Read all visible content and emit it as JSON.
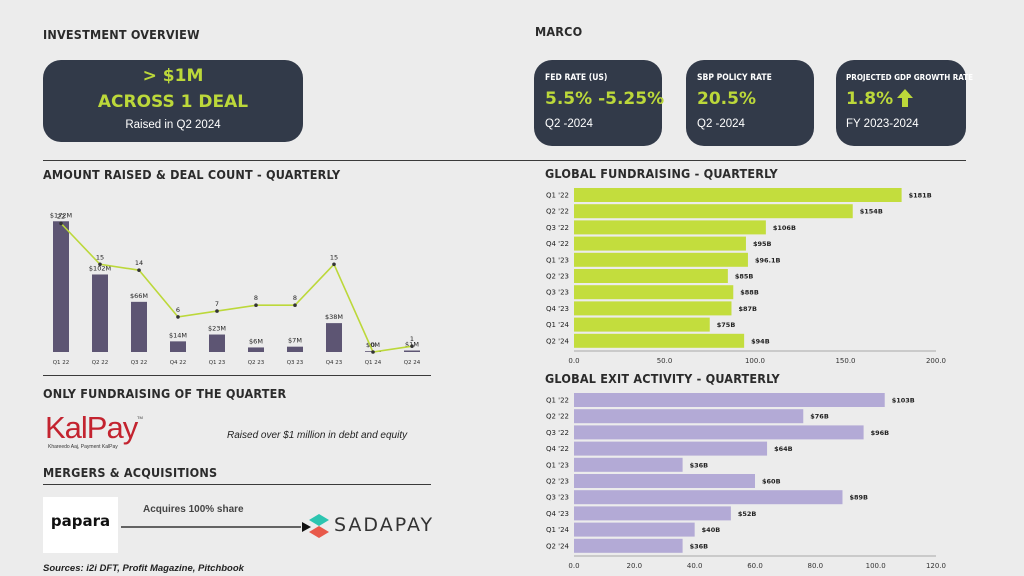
{
  "investment_overview": {
    "heading": "INVESTMENT OVERVIEW",
    "amount": "> $1M",
    "deal_line": "ACROSS 1 DEAL",
    "raised_note": "Raised in Q2 2024"
  },
  "macro": {
    "heading": "MARCO",
    "cards": [
      {
        "title": "FED RATE (US)",
        "value": "5.5% -5.25%",
        "period": "Q2 -2024"
      },
      {
        "title": "SBP POLICY RATE",
        "value": "20.5%",
        "period": "Q2 -2024"
      },
      {
        "title": "PROJECTED GDP GROWTH RATE",
        "value": "1.8%",
        "period": "FY 2023-2024",
        "icon": "arrow-up-icon"
      }
    ]
  },
  "only_fundraising": {
    "heading": "ONLY FUNDRAISING OF THE QUARTER",
    "company": "KalPay",
    "tagline": "Khareedo Aaj, Payment KalPay",
    "tm": "TM",
    "note": "Raised over $1 million in debt and equity"
  },
  "mna": {
    "heading": "MERGERS & ACQUISITIONS",
    "acquirer": "papara",
    "action": "Acquires 100% share",
    "target": "SADAPAY"
  },
  "sources": "Sources: i2i DFT, Profit Magazine, Pitchbook",
  "colors": {
    "card": "#323a49",
    "accent": "#bcd83a",
    "bar_purple": "#5d5573",
    "exit_purple": "#b3aad6",
    "lime_bar": "#c3dd3d"
  },
  "chart_data": [
    {
      "type": "bar",
      "title": "AMOUNT RAISED & DEAL COUNT - QUARTERLY",
      "categories": [
        "Q1 22",
        "Q2 22",
        "Q3 22",
        "Q4 22",
        "Q1 23",
        "Q2 23",
        "Q3 23",
        "Q4 23",
        "Q1 24",
        "Q2 24"
      ],
      "series": [
        {
          "name": "Amount Raised ($M)",
          "kind": "bar",
          "values": [
            172,
            102,
            66,
            14,
            23,
            6,
            7,
            38,
            0,
            1
          ],
          "labels": [
            "$172M",
            "$102M",
            "$66M",
            "$14M",
            "$23M",
            "$6M",
            "$7M",
            "$38M",
            "$0M",
            "$1M"
          ]
        },
        {
          "name": "Deal Count",
          "kind": "line",
          "values": [
            22,
            15,
            14,
            6,
            7,
            8,
            8,
            15,
            0,
            1
          ]
        }
      ],
      "ylim_amount": [
        0,
        200
      ],
      "ylim_count": [
        0,
        26
      ]
    },
    {
      "type": "bar",
      "orientation": "horizontal",
      "title": "GLOBAL FUNDRAISING -  QUARTERLY",
      "categories": [
        "Q1 '22",
        "Q2 '22",
        "Q3 '22",
        "Q4 '22",
        "Q1 '23",
        "Q2 '23",
        "Q3 '23",
        "Q4 '23",
        "Q1 '24",
        "Q2 '24"
      ],
      "values": [
        181,
        154,
        106,
        95,
        96.1,
        85,
        88,
        87,
        75,
        94
      ],
      "labels": [
        "$181B",
        "$154B",
        "$106B",
        "$95B",
        "$96.1B",
        "$85B",
        "$88B",
        "$87B",
        "$75B",
        "$94B"
      ],
      "xlim": [
        0,
        200
      ],
      "xticks": [
        "0.0",
        "50.0",
        "100.0",
        "150.0",
        "200.0"
      ],
      "xtick_values": [
        0,
        50,
        100,
        150,
        200
      ]
    },
    {
      "type": "bar",
      "orientation": "horizontal",
      "title": "GLOBAL EXIT ACTIVITY -  QUARTERLY",
      "categories": [
        "Q1 '22",
        "Q2 '22",
        "Q3 '22",
        "Q4 '22",
        "Q1 '23",
        "Q2 '23",
        "Q3 '23",
        "Q4 '23",
        "Q1 '24",
        "Q2 '24"
      ],
      "values": [
        103,
        76,
        96,
        64,
        36,
        60,
        89,
        52,
        40,
        36
      ],
      "labels": [
        "$103B",
        "$76B",
        "$96B",
        "$64B",
        "$36B",
        "$60B",
        "$89B",
        "$52B",
        "$40B",
        "$36B"
      ],
      "xlim": [
        0,
        120
      ],
      "xticks": [
        "0.0",
        "20.0",
        "40.0",
        "60.0",
        "80.0",
        "100.0",
        "120.0"
      ],
      "xtick_values": [
        0,
        20,
        40,
        60,
        80,
        100,
        120
      ]
    }
  ]
}
